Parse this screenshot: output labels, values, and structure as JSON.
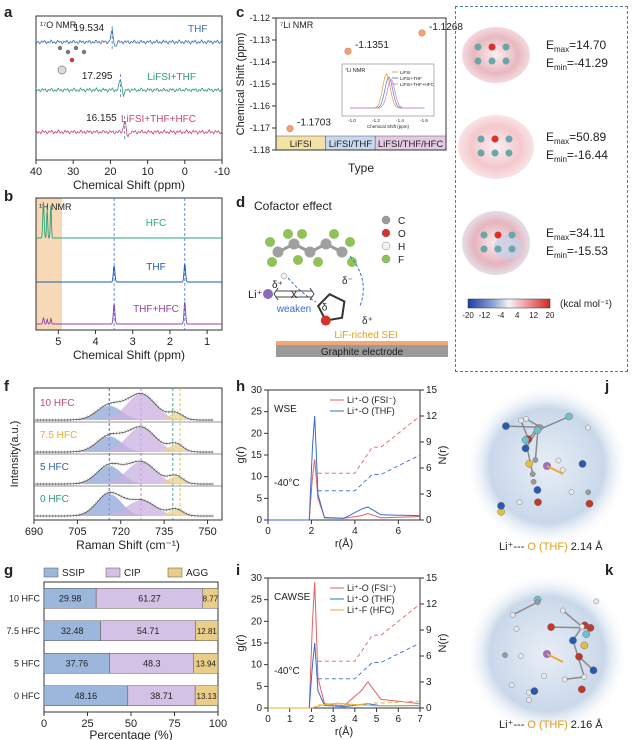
{
  "panels": {
    "a": {
      "letter": "a",
      "nmr_title": "¹⁷O NMR",
      "xlabel": "Chemical Shift (ppm)",
      "xticks": [
        "40",
        "30",
        "20",
        "10",
        "0",
        "-10"
      ],
      "traces": [
        {
          "name": "THF",
          "peak": "19.534",
          "color": "#3a6bb5"
        },
        {
          "name": "LiFSI+THF",
          "peak": "17.295",
          "color": "#2e9a76"
        },
        {
          "name": "LiFSI+THF+HFC",
          "peak": "16.155",
          "color": "#c5487a"
        }
      ]
    },
    "b": {
      "letter": "b",
      "nmr_title": "¹H NMR",
      "xlabel": "Chemical Shift (ppm)",
      "xticks": [
        "5",
        "4",
        "3",
        "2",
        "1"
      ],
      "traces": [
        {
          "name": "HFC",
          "color": "#2ea37a"
        },
        {
          "name": "THF",
          "color": "#1e5aa8"
        },
        {
          "name": "THF+HFC",
          "color": "#8e44ad"
        }
      ]
    },
    "c": {
      "letter": "c",
      "nmr_title": "⁷Li NMR",
      "ylabel": "Chemical Shift (ppm)",
      "xlabel": "Type",
      "yticks": [
        "-1.12",
        "-1.13",
        "-1.14",
        "-1.15",
        "-1.16",
        "-1.17",
        "-1.18"
      ],
      "categories": [
        "LiFSI",
        "LiFSI/THF",
        "LiFSI/THF/HFC"
      ],
      "values": [
        -1.1703,
        -1.1351,
        -1.1268
      ],
      "value_labels": [
        "-1.1703",
        "-1.1351",
        "-1.1268"
      ],
      "band_colors": [
        "#f3e1a6",
        "#c7d9ee",
        "#e6c9e3"
      ],
      "inset": {
        "title": "⁷Li NMR",
        "legend": [
          "LiFSI",
          "LiFSI+THF",
          "LiFSI+THF+HFC"
        ],
        "xlabel": "Chemical Shift (ppm)",
        "xticks": [
          "-1.0",
          "-1.2",
          "-1.4",
          "-1.6"
        ]
      }
    },
    "d": {
      "letter": "d",
      "title": "Cofactor effect",
      "legend": [
        {
          "label": "C",
          "color": "#9a9a9a"
        },
        {
          "label": "O",
          "color": "#d9322b"
        },
        {
          "label": "H",
          "color": "#f2f2f2"
        },
        {
          "label": "F",
          "color": "#8fc35a"
        }
      ],
      "li_label": "Li⁺",
      "weaken_label": "weaken",
      "x_mark": "X",
      "delta_plus": "δ⁺",
      "delta_minus": "δ⁻",
      "delta": "δ",
      "sei_label": "LiF-riched SEI",
      "electrode_label": "Graphite electrode"
    },
    "esp": {
      "molecules": [
        {
          "emax": "14.70",
          "emin": "-41.29"
        },
        {
          "emax": "50.89",
          "emin": "-16.44"
        },
        {
          "emax": "34.11",
          "emin": "-15.53"
        }
      ],
      "emax_prefix": "E",
      "emax_sub": "max",
      "emin_sub": "min",
      "colorbar_ticks": [
        "-20",
        "-12",
        "-4",
        "4",
        "12",
        "20"
      ],
      "colorbar_unit": "(kcal mol⁻¹)"
    },
    "f": {
      "letter": "f",
      "ylabel": "Intensity(a.u.)",
      "xlabel": "Raman Shift (cm⁻¹)",
      "xticks": [
        "690",
        "705",
        "720",
        "735",
        "750"
      ],
      "traces": [
        {
          "name": "10 HFC",
          "color": "#c5487a"
        },
        {
          "name": "7.5 HFC",
          "color": "#e0b030"
        },
        {
          "name": "5 HFC",
          "color": "#2f62b0"
        },
        {
          "name": "0 HFC",
          "color": "#2e9a76"
        }
      ]
    },
    "g": {
      "letter": "g",
      "xlabel": "Percentage (%)",
      "xticks": [
        "0",
        "25",
        "50",
        "75",
        "100"
      ],
      "legend": [
        "SSIP",
        "CIP",
        "AGG"
      ],
      "colors": [
        "#9bb8dc",
        "#d4c1e6",
        "#e9cd88"
      ]
    },
    "h": {
      "letter": "h",
      "title": "WSE",
      "xlabel": "r(Å)",
      "ylabel_left": "g(r)",
      "ylabel_right": "N(r)",
      "xticks": [
        "0",
        "2",
        "4",
        "6"
      ],
      "yticks_left": [
        "0",
        "5",
        "10",
        "15",
        "20",
        "25",
        "30"
      ],
      "yticks_right": [
        "0",
        "3",
        "6",
        "9",
        "12",
        "15"
      ],
      "temp": "-40°C",
      "legend": [
        {
          "label": "Li⁺-O (FSI⁻)",
          "color": "#e06262"
        },
        {
          "label": "Li⁺-O (THF)",
          "color": "#3a6bd0"
        }
      ]
    },
    "i": {
      "letter": "i",
      "title": "CAWSE",
      "xlabel": "r(Å)",
      "ylabel_left": "g(r)",
      "ylabel_right": "N(r)",
      "xticks": [
        "0",
        "1",
        "2",
        "3",
        "4",
        "5",
        "6",
        "7"
      ],
      "yticks_left": [
        "0",
        "5",
        "10",
        "15",
        "20",
        "25",
        "30"
      ],
      "yticks_right": [
        "0",
        "3",
        "6",
        "9",
        "12",
        "15"
      ],
      "temp": "-40°C",
      "legend": [
        {
          "label": "Li⁺-O (FSI⁻)",
          "color": "#e06262"
        },
        {
          "label": "Li⁺-O (THF)",
          "color": "#3a6bd0"
        },
        {
          "label": "Li⁺-F (HFC)",
          "color": "#e0b030"
        }
      ]
    },
    "j": {
      "letter": "j",
      "caption_pre": "Li⁺---",
      "caption_o": "O (THF)",
      "caption_dist": "2.14 Å"
    },
    "k": {
      "letter": "k",
      "caption_pre": "Li⁺---",
      "caption_o": "O (THF)",
      "caption_dist": "2.16 Å"
    }
  },
  "chart_data": [
    {
      "type": "line",
      "panel": "a",
      "title": "¹⁷O NMR",
      "xlabel": "Chemical Shift (ppm)",
      "xlim": [
        40,
        -10
      ],
      "series": [
        {
          "name": "THF",
          "peak": 19.534
        },
        {
          "name": "LiFSI+THF",
          "peak": 17.295
        },
        {
          "name": "LiFSI+THF+HFC",
          "peak": 16.155
        }
      ]
    },
    {
      "type": "line",
      "panel": "b",
      "title": "¹H NMR",
      "xlabel": "Chemical Shift (ppm)",
      "xlim": [
        5.6,
        0.6
      ],
      "series": [
        {
          "name": "HFC",
          "peaks": [
            5.4
          ]
        },
        {
          "name": "THF",
          "peaks": [
            3.5,
            1.6
          ]
        },
        {
          "name": "THF+HFC",
          "peaks": [
            5.4,
            3.5,
            1.6
          ]
        }
      ]
    },
    {
      "type": "scatter",
      "panel": "c",
      "title": "⁷Li NMR",
      "xlabel": "Type",
      "ylabel": "Chemical Shift (ppm)",
      "ylim": [
        -1.18,
        -1.12
      ],
      "categories": [
        "LiFSI",
        "LiFSI/THF",
        "LiFSI/THF/HFC"
      ],
      "values": [
        -1.1703,
        -1.1351,
        -1.1268
      ]
    },
    {
      "type": "line",
      "panel": "f",
      "xlabel": "Raman Shift (cm⁻¹)",
      "ylabel": "Intensity(a.u.)",
      "xlim": [
        690,
        755
      ],
      "series": [
        {
          "name": "10 HFC"
        },
        {
          "name": "7.5 HFC"
        },
        {
          "name": "5 HFC"
        },
        {
          "name": "0 HFC"
        }
      ]
    },
    {
      "type": "bar",
      "panel": "g",
      "orientation": "horizontal",
      "stacked": true,
      "xlabel": "Percentage (%)",
      "xlim": [
        0,
        100
      ],
      "categories": [
        "10 HFC",
        "7.5 HFC",
        "5 HFC",
        "0 HFC"
      ],
      "series": [
        {
          "name": "SSIP",
          "values": [
            29.98,
            32.48,
            37.76,
            48.16
          ]
        },
        {
          "name": "CIP",
          "values": [
            61.27,
            54.71,
            48.3,
            38.71
          ]
        },
        {
          "name": "AGG",
          "values": [
            8.77,
            12.81,
            13.94,
            13.13
          ]
        }
      ]
    },
    {
      "type": "line",
      "panel": "h",
      "title": "WSE",
      "xlabel": "r(Å)",
      "ylabel": "g(r)",
      "ylabel_right": "N(r)",
      "xlim": [
        0,
        7
      ],
      "ylim": [
        0,
        30
      ],
      "ylim_right": [
        0,
        15
      ],
      "series": [
        {
          "name": "Li⁺-O (FSI⁻)",
          "x": [
            0,
            1.9,
            2.05,
            2.15,
            2.3,
            2.6,
            3.5,
            4.3,
            4.6,
            5.2,
            7
          ],
          "y": [
            0,
            0,
            10,
            14,
            5,
            0.6,
            0.4,
            1,
            1.5,
            0.5,
            0.8
          ]
        },
        {
          "name": "Li⁺-O (THF)",
          "x": [
            0,
            1.9,
            2.05,
            2.15,
            2.3,
            2.6,
            3.5,
            4.3,
            4.6,
            5.2,
            7
          ],
          "y": [
            0,
            0,
            17,
            24,
            6,
            0.5,
            0.4,
            2.5,
            3,
            1.2,
            1
          ]
        }
      ]
    },
    {
      "type": "line",
      "panel": "i",
      "title": "CAWSE",
      "xlabel": "r(Å)",
      "ylabel": "g(r)",
      "ylabel_right": "N(r)",
      "xlim": [
        0,
        7
      ],
      "ylim": [
        0,
        30
      ],
      "ylim_right": [
        0,
        15
      ],
      "series": [
        {
          "name": "Li⁺-O (FSI⁻)",
          "x": [
            0,
            1.9,
            2.05,
            2.15,
            2.3,
            2.6,
            3.5,
            4.3,
            4.6,
            5.2,
            7
          ],
          "y": [
            0,
            0,
            20,
            29,
            7,
            1,
            0.5,
            4,
            6,
            2,
            1
          ]
        },
        {
          "name": "Li⁺-O (THF)",
          "x": [
            0,
            1.9,
            2.05,
            2.15,
            2.3,
            2.6,
            3.5,
            4.3,
            4.6,
            5.2,
            7
          ],
          "y": [
            0,
            0,
            10,
            15,
            4,
            0.6,
            0.3,
            0.8,
            1,
            0.5,
            0.6
          ]
        },
        {
          "name": "Li⁺-F (HFC)",
          "x": [
            0,
            2,
            2.6,
            3.2,
            4,
            5,
            7
          ],
          "y": [
            0,
            0,
            0.8,
            1.1,
            0.8,
            0.5,
            0.5
          ]
        }
      ]
    }
  ]
}
